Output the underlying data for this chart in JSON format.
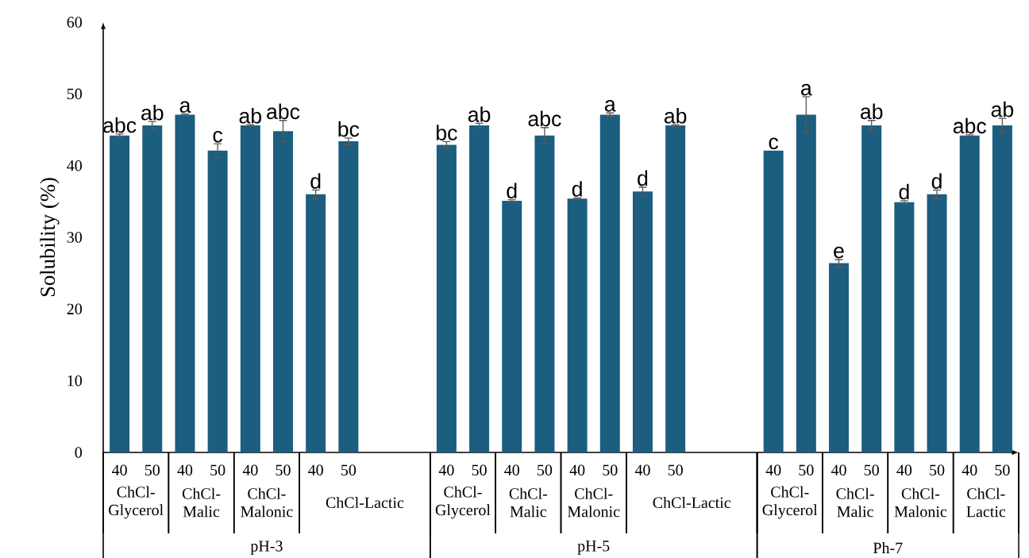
{
  "chart_data": {
    "type": "bar",
    "ylabel": "Solubility (%)",
    "categories": [
      "40",
      "50",
      "40",
      "50",
      "40",
      "50",
      "40",
      "50",
      null,
      null,
      "40",
      "50",
      "40",
      "50",
      "40",
      "50",
      "40",
      "50",
      null,
      null,
      "40",
      "50",
      "40",
      "50",
      "40",
      "50",
      "40",
      "50"
    ],
    "values": [
      44.2,
      45.6,
      47.1,
      42.1,
      45.6,
      44.8,
      36.0,
      43.4,
      null,
      null,
      42.9,
      45.6,
      35.1,
      44.2,
      35.4,
      47.1,
      36.4,
      45.6,
      null,
      null,
      42.1,
      47.1,
      26.4,
      45.6,
      34.9,
      36.0,
      44.2,
      45.6
    ],
    "errors": [
      0.2,
      0.55,
      0.1,
      0.95,
      0.1,
      1.5,
      0.6,
      0.45,
      null,
      null,
      0.45,
      0.3,
      0.15,
      1.1,
      0.1,
      0.25,
      0.6,
      0.1,
      null,
      null,
      null,
      2.5,
      0.5,
      0.7,
      0.2,
      0.6,
      0.1,
      1.0
    ],
    "value_labels": [
      "abc",
      "ab",
      "a",
      "c",
      "ab",
      "abc",
      "d",
      "bc",
      null,
      null,
      "bc",
      "ab",
      "d",
      "abc",
      "d",
      "a",
      "d",
      "ab",
      null,
      null,
      "c",
      "a",
      "e",
      "ab",
      "d",
      "d",
      "abc",
      "ab"
    ],
    "color": "#1b5e7f",
    "ylim": [
      0,
      60
    ],
    "yticks": [
      0,
      10,
      20,
      30,
      40,
      50,
      60
    ],
    "annotations": [
      "ChCl-Glycerol",
      "ChCl-Malic",
      "ChCl-Malonic",
      "ChCl-Lactic",
      "ChCl-Glycerol",
      "ChCl-Malic",
      "ChCl-Malonic",
      "ChCl-Lactic",
      "ChCl-Glycerol",
      "ChCl-Malic",
      "ChCl-Malonic",
      "ChCl-Lactic",
      "pH-3",
      "pH-5",
      "Ph-7"
    ]
  }
}
